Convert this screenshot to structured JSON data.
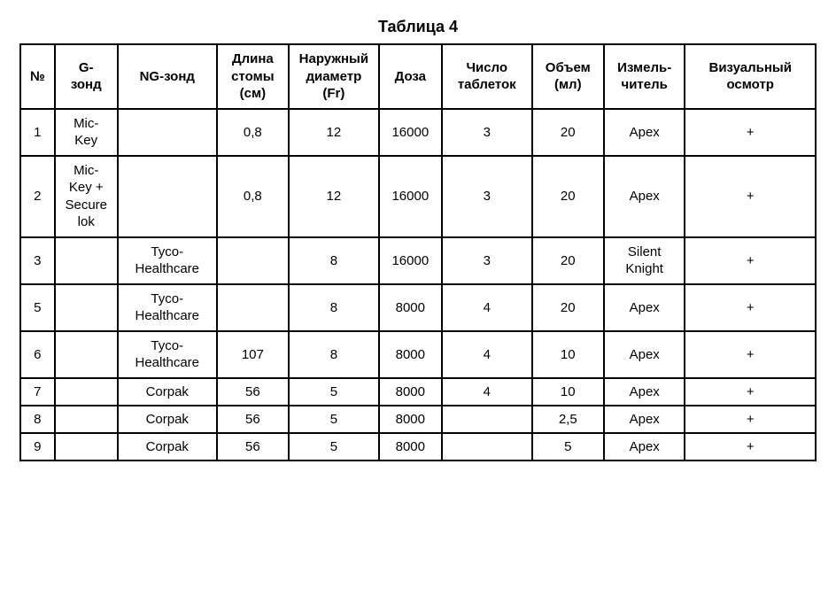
{
  "title": "Таблица 4",
  "columns": [
    "№",
    "G-\nзонд",
    "NG-зонд",
    "Длина\nстомы\n(см)",
    "Наружный\nдиаметр\n(Fr)",
    "Доза",
    "Число\nтаблеток",
    "Объем\n(мл)",
    "Измель-\nчитель",
    "Визуальный\nосмотр"
  ],
  "rows": [
    [
      "1",
      "Mic-\nKey",
      "",
      "0,8",
      "12",
      "16000",
      "3",
      "20",
      "Apex",
      "+"
    ],
    [
      "2",
      "Mic-\nKey +\nSecure\nlok",
      "",
      "0,8",
      "12",
      "16000",
      "3",
      "20",
      "Apex",
      "+"
    ],
    [
      "3",
      "",
      "Tyco-\nHealthcare",
      "",
      "8",
      "16000",
      "3",
      "20",
      "Silent\nKnight",
      "+"
    ],
    [
      "5",
      "",
      "Tyco-\nHealthcare",
      "",
      "8",
      "8000",
      "4",
      "20",
      "Apex",
      "+"
    ],
    [
      "6",
      "",
      "Tyco-\nHealthcare",
      "107",
      "8",
      "8000",
      "4",
      "10",
      "Apex",
      "+"
    ],
    [
      "7",
      "",
      "Corpak",
      "56",
      "5",
      "8000",
      "4",
      "10",
      "Apex",
      "+"
    ],
    [
      "8",
      "",
      "Corpak",
      "56",
      "5",
      "8000",
      "",
      "2,5",
      "Apex",
      "+"
    ],
    [
      "9",
      "",
      "Corpak",
      "56",
      "5",
      "8000",
      "",
      "5",
      "Apex",
      "+"
    ]
  ],
  "column_widths_class": [
    "col-num",
    "col-gzond",
    "col-ngzond",
    "col-stoma",
    "col-diam",
    "col-dose",
    "col-tabs",
    "col-vol",
    "col-grind",
    "col-vis"
  ]
}
